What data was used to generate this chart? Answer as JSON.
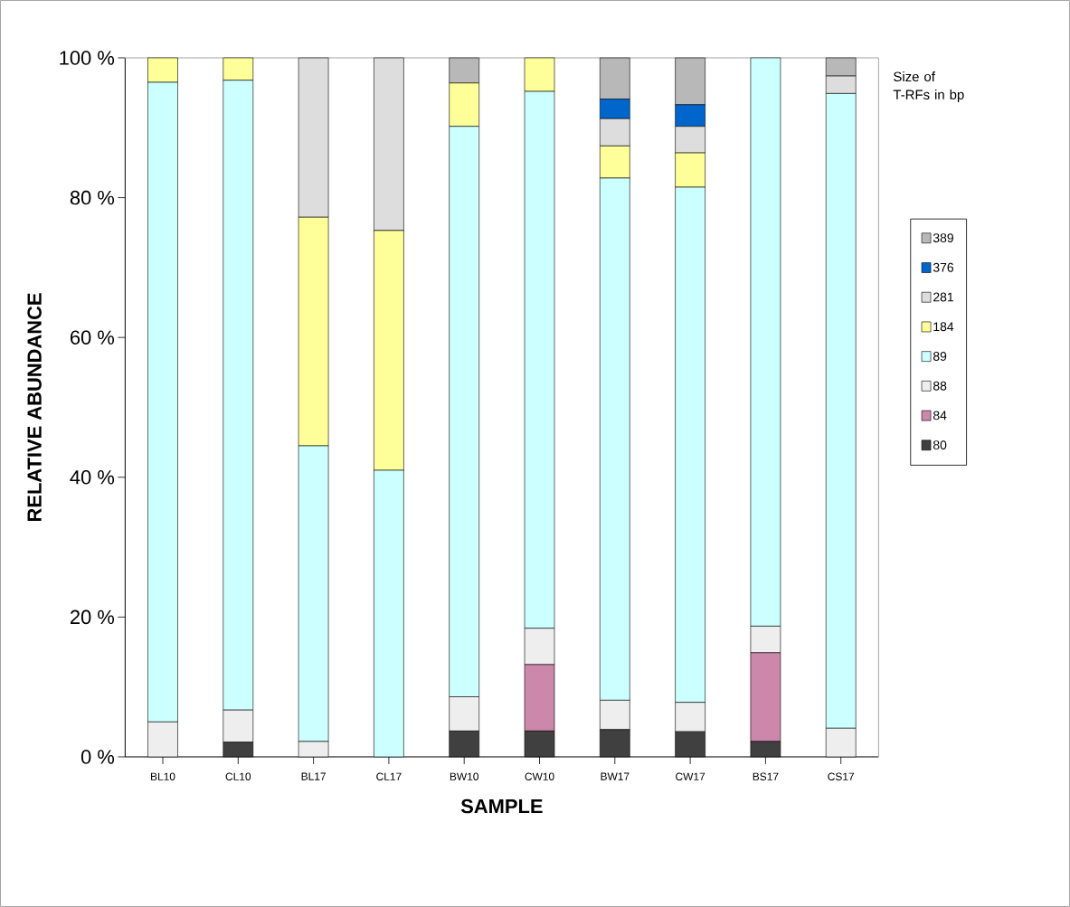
{
  "chart_data": {
    "type": "bar",
    "stacked": true,
    "xlabel": "SAMPLE",
    "ylabel": "RELATIVE ABUNDANCE",
    "legend_title": "Size of T-RFs in bp",
    "categories": [
      "BL10",
      "CL10",
      "BL17",
      "CL17",
      "BW10",
      "CW10",
      "BW17",
      "CW17",
      "BS17",
      "CS17"
    ],
    "ylim": [
      0,
      100
    ],
    "yticks": [
      {
        "value": 0,
        "label": "0 %"
      },
      {
        "value": 20,
        "label": "20 %"
      },
      {
        "value": 40,
        "label": "40 %"
      },
      {
        "value": 60,
        "label": "60 %"
      },
      {
        "value": 80,
        "label": "80 %"
      },
      {
        "value": 100,
        "label": "100 %"
      }
    ],
    "legend": "right",
    "grid": false,
    "series": [
      {
        "name": "80",
        "color": "#404040",
        "values": [
          0,
          2.1,
          0,
          0,
          3.7,
          3.7,
          3.9,
          3.6,
          2.2,
          0
        ]
      },
      {
        "name": "84",
        "color": "#cc88aa",
        "values": [
          0,
          0,
          0,
          0,
          0,
          9.5,
          0,
          0,
          12.7,
          0
        ]
      },
      {
        "name": "88",
        "color": "#eeeeee",
        "values": [
          5,
          4.6,
          2.2,
          0,
          4.9,
          5.2,
          4.2,
          4.2,
          3.8,
          4.1
        ]
      },
      {
        "name": "89",
        "color": "#ccffff",
        "values": [
          91.5,
          90.1,
          42.3,
          41,
          81.6,
          76.8,
          74.7,
          73.7,
          81.3,
          90.8
        ]
      },
      {
        "name": "184",
        "color": "#ffff99",
        "values": [
          3.5,
          3.2,
          32.7,
          34.3,
          6.2,
          4.8,
          4.6,
          4.9,
          0,
          0
        ]
      },
      {
        "name": "281",
        "color": "#dddddd",
        "values": [
          0,
          0,
          22.8,
          24.7,
          0,
          0,
          3.9,
          3.8,
          0,
          2.5
        ]
      },
      {
        "name": "376",
        "color": "#0066cc",
        "values": [
          0,
          0,
          0,
          0,
          0,
          0,
          2.8,
          3.1,
          0,
          0
        ]
      },
      {
        "name": "389",
        "color": "#b8b8b8",
        "values": [
          0,
          0,
          0,
          0,
          3.6,
          0,
          5.9,
          6.7,
          0,
          2.6
        ]
      }
    ]
  }
}
